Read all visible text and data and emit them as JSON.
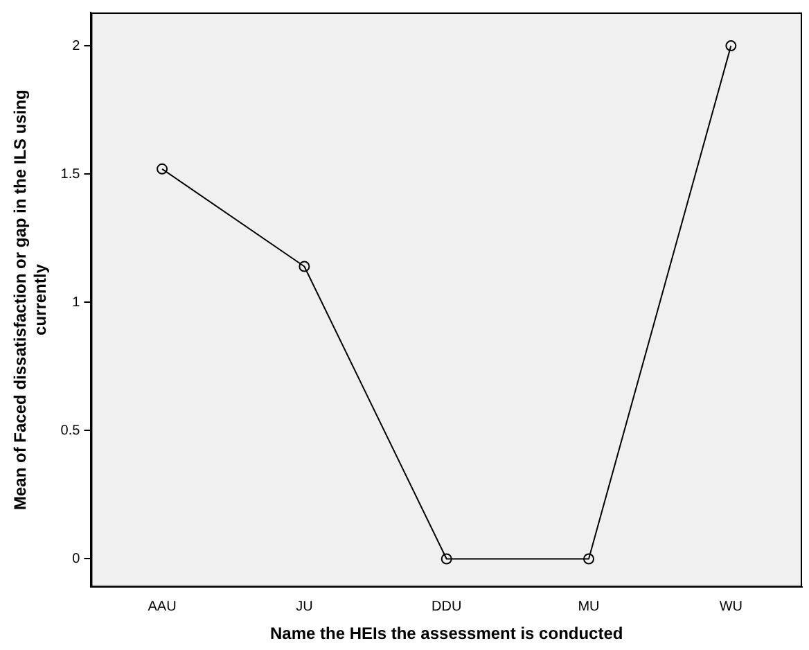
{
  "chart_data": {
    "type": "line",
    "xlabel": "Name the HEIs the assessment is conducted",
    "ylabel": "Mean of Faced dissatisfaction or gap in the ILS using currently",
    "categories": [
      "AAU",
      "JU",
      "DDU",
      "MU",
      "WU"
    ],
    "series": [
      {
        "color": "#000000",
        "values": [
          1.52,
          1.14,
          0,
          0,
          2
        ]
      }
    ],
    "ylim": [
      -0.11,
      2.13
    ],
    "yticks": [
      0,
      0.5,
      1,
      1.5,
      2
    ],
    "grid": false,
    "legend": false,
    "marker": "circle",
    "line_style": "solid"
  }
}
